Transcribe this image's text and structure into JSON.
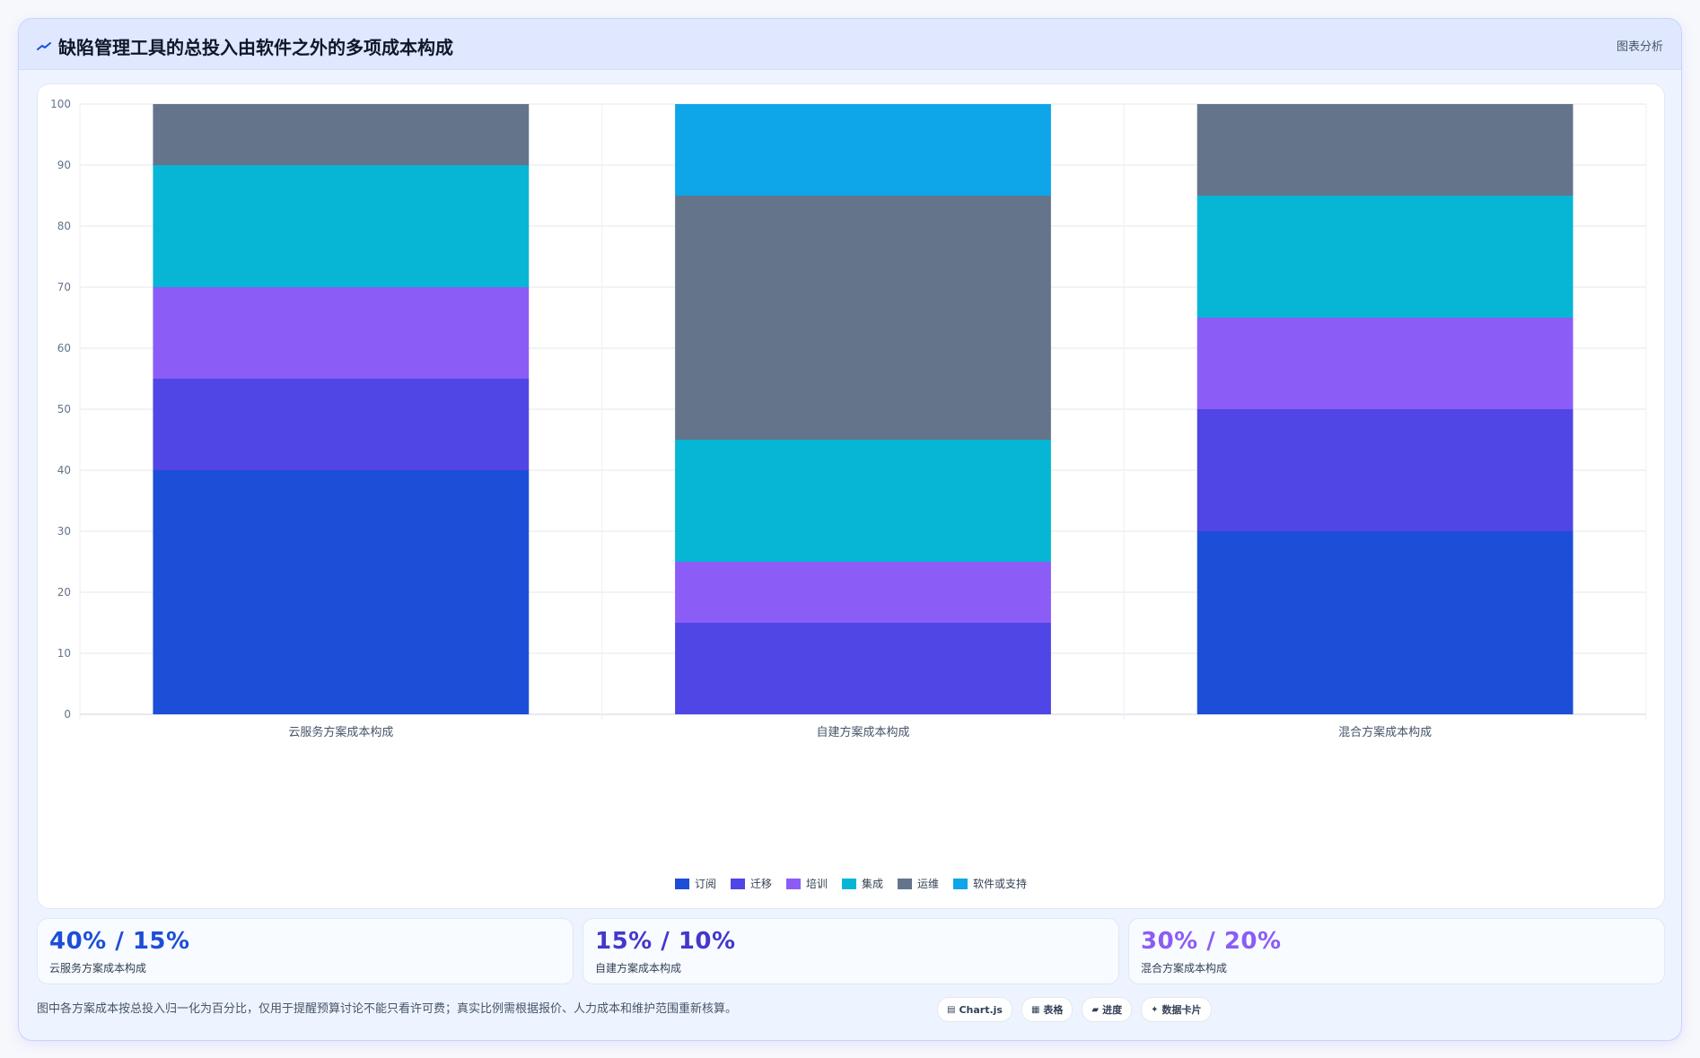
{
  "header": {
    "title": "缺陷管理工具的总投入由软件之外的多项成本构成",
    "tag": "图表分析",
    "icon": "trend-line-icon"
  },
  "chart_data": {
    "type": "bar",
    "stacked": true,
    "categories": [
      "云服务方案成本构成",
      "自建方案成本构成",
      "混合方案成本构成"
    ],
    "series": [
      {
        "name": "订阅",
        "color": "#1d4ed8",
        "values": [
          40,
          0,
          30
        ]
      },
      {
        "name": "迁移",
        "color": "#4f46e5",
        "values": [
          15,
          15,
          20
        ]
      },
      {
        "name": "培训",
        "color": "#8b5cf6",
        "values": [
          15,
          10,
          15
        ]
      },
      {
        "name": "集成",
        "color": "#06b6d4",
        "values": [
          20,
          20,
          20
        ]
      },
      {
        "name": "运维",
        "color": "#64748b",
        "values": [
          10,
          40,
          15
        ]
      },
      {
        "name": "软件或支持",
        "color": "#0ea5e9",
        "values": [
          0,
          15,
          0
        ]
      }
    ],
    "ylim": [
      0,
      100
    ],
    "yticks": [
      0,
      10,
      20,
      30,
      40,
      50,
      60,
      70,
      80,
      90,
      100
    ],
    "grid": true,
    "legend": "bottom-center",
    "xlabel": "",
    "ylabel": ""
  },
  "stats": [
    {
      "value": "40% / 15%",
      "label": "云服务方案成本构成",
      "color": "#1d4ed8"
    },
    {
      "value": "15% / 10%",
      "label": "自建方案成本构成",
      "color": "#4338ca"
    },
    {
      "value": "30% / 20%",
      "label": "混合方案成本构成",
      "color": "#8b5cf6"
    }
  ],
  "footnote": "图中各方案成本按总投入归一化为百分比，仅用于提醒预算讨论不能只看许可费；真实比例需根据报价、人力成本和维护范围重新核算。",
  "tags": [
    {
      "icon": "▤",
      "label": "Chart.js"
    },
    {
      "icon": "▦",
      "label": "表格"
    },
    {
      "icon": "▰",
      "label": "进度"
    },
    {
      "icon": "✦",
      "label": "数据卡片"
    }
  ]
}
